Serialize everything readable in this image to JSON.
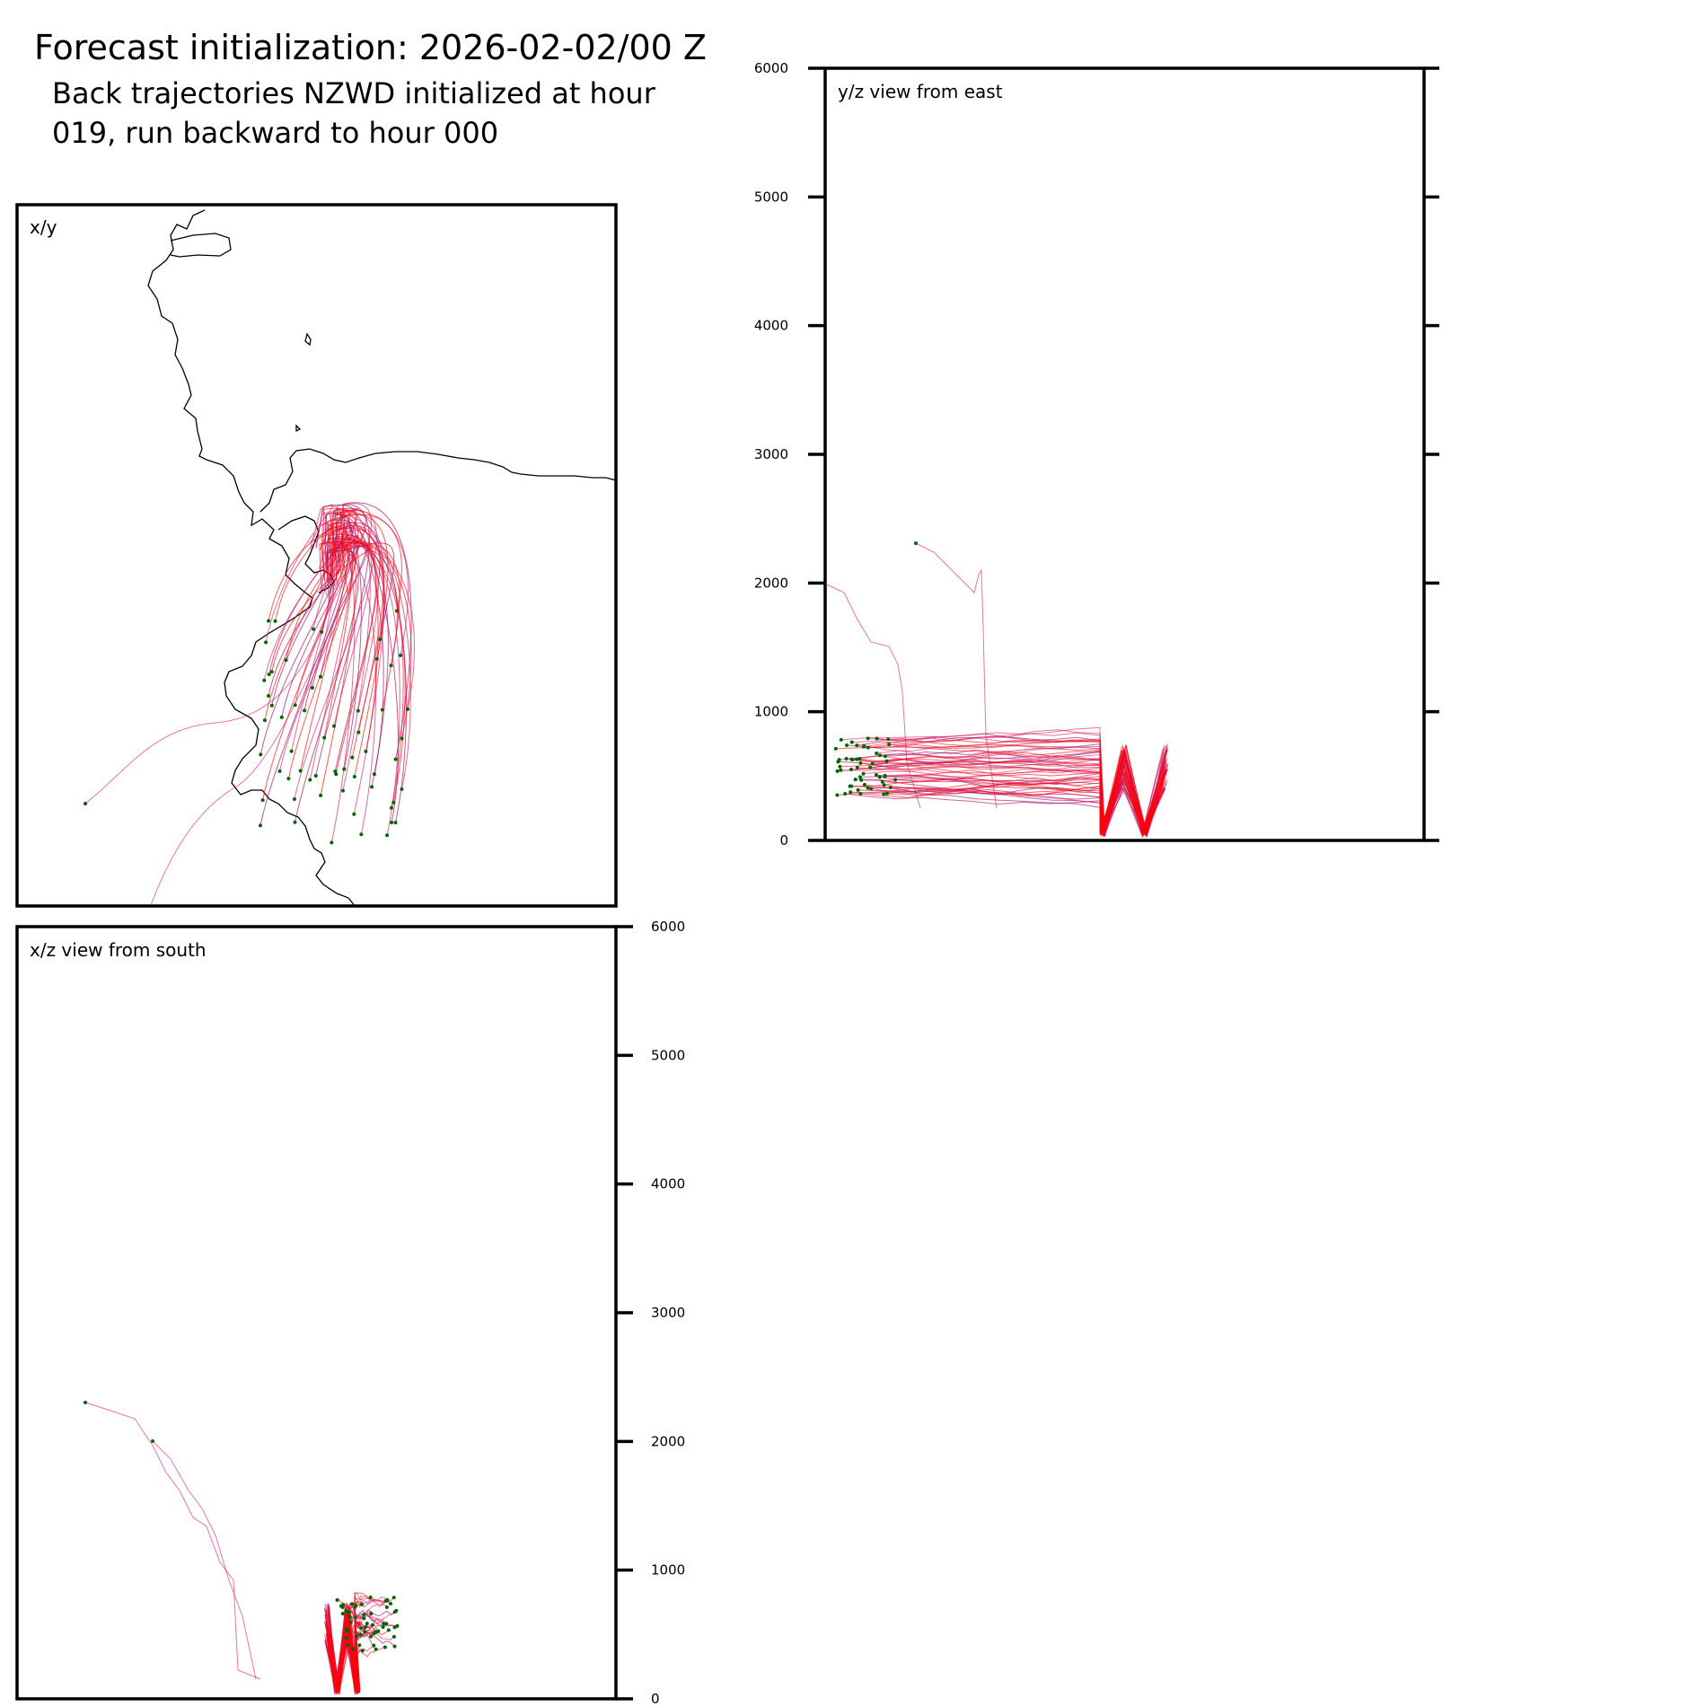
{
  "title": "Forecast initialization: 2026-02-02/00 Z",
  "subtitle": "Back trajectories NZWD initialized at hour 019, run backward to hour 000",
  "colors": {
    "trajectory_early": "#d81b60",
    "trajectory_late": "#ff0000",
    "trajectory_mid": "#a0005a",
    "start_marker": "#006400",
    "coastline": "#000000"
  },
  "chart_data": [
    {
      "type": "line",
      "panel": "x/y",
      "title": "x/y",
      "description_source": "plan-view map of back trajectories with coastline",
      "grid": false
    },
    {
      "type": "line",
      "panel": "y/z",
      "title": "y/z view from east",
      "ylabel": "",
      "ylim": [
        0,
        6000
      ],
      "yticks": [
        0,
        1000,
        2000,
        3000,
        4000,
        5000,
        6000
      ],
      "grid": false
    },
    {
      "type": "line",
      "panel": "x/z",
      "title": "x/z view from south",
      "ylabel": "",
      "ylim": [
        0,
        6000
      ],
      "yticks": [
        0,
        1000,
        2000,
        3000,
        4000,
        5000,
        6000
      ],
      "grid": false
    }
  ]
}
